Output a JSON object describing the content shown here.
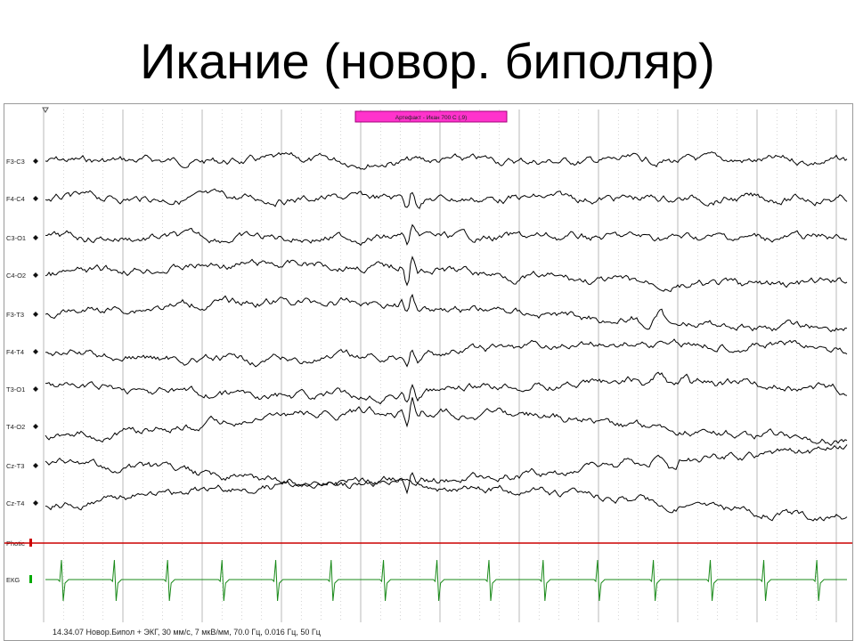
{
  "slide": {
    "title": "Икание (новор. биполяр)"
  },
  "recording": {
    "marker_text": "Артефакт - Икан 700 С (,9)",
    "status_line": "14.34.07 Новор.Бипол + ЭКГ, 30 мм/с, 7 мкВ/мм, 70.0 Гц, 0.016 Гц, 50 Гц",
    "channels": [
      {
        "label": "F3-C3",
        "color": "#000000"
      },
      {
        "label": "F4-C4",
        "color": "#000000"
      },
      {
        "label": "C3-O1",
        "color": "#000000"
      },
      {
        "label": "C4-O2",
        "color": "#000000"
      },
      {
        "label": "F3-T3",
        "color": "#000000"
      },
      {
        "label": "F4-T4",
        "color": "#000000"
      },
      {
        "label": "T3-O1",
        "color": "#000000"
      },
      {
        "label": "T4-O2",
        "color": "#000000"
      },
      {
        "label": "Cz-T3",
        "color": "#000000"
      },
      {
        "label": "Cz-T4",
        "color": "#000000"
      },
      {
        "label": "Photic",
        "color": "#cc0000"
      },
      {
        "label": "ЕКG",
        "color": "#006600"
      }
    ],
    "colors": {
      "marker": "#ff33cc",
      "photic_line": "#cc0000",
      "ecg_trace": "#1a8a1a",
      "grid": "#b8b8b8"
    }
  }
}
